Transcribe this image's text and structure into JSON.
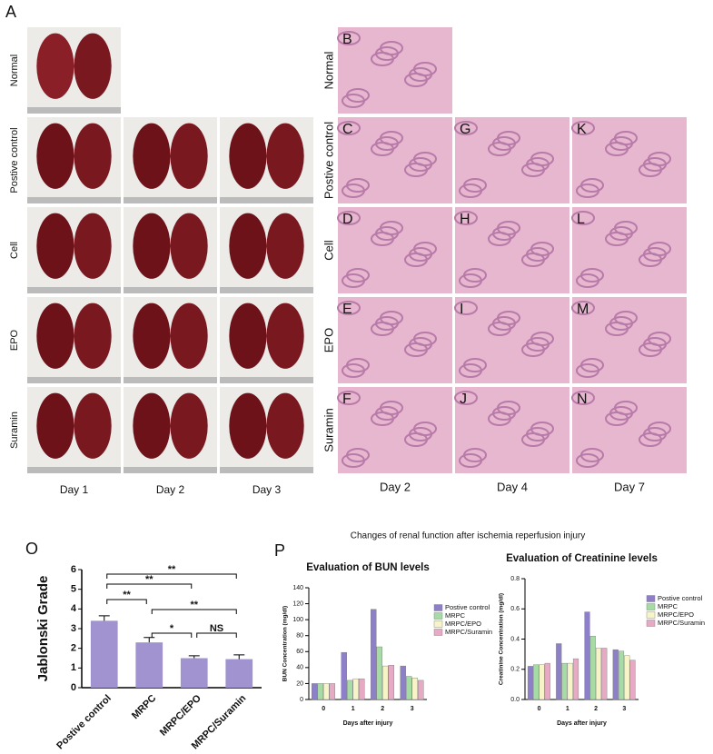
{
  "panel_a": {
    "label": "A",
    "rows": [
      "Normal",
      "Postive control",
      "Cell",
      "EPO",
      "Suramin"
    ],
    "columns": [
      "Day 1",
      "Day 2",
      "Day 3"
    ]
  },
  "panel_histology": {
    "panel_labels": [
      [
        "B"
      ],
      [
        "C",
        "G",
        "K"
      ],
      [
        "D",
        "H",
        "L"
      ],
      [
        "E",
        "I",
        "M"
      ],
      [
        "F",
        "J",
        "N"
      ]
    ],
    "rows": [
      "Normal",
      "Postive control",
      "Cell",
      "EPO",
      "Suramin"
    ],
    "columns": [
      "Day 2",
      "Day 4",
      "Day 7"
    ]
  },
  "panel_o": {
    "label": "O"
  },
  "panel_p": {
    "label": "P",
    "title": "Changes of renal function after ischemia reperfusion injury"
  },
  "chart_data": [
    {
      "type": "bar",
      "y_label": "Jablonski Grade",
      "categories": [
        "Postive control",
        "MRPC",
        "MRPC/EPO",
        "MRPC/Suramin"
      ],
      "values": [
        3.4,
        2.3,
        1.5,
        1.45
      ],
      "errors": [
        0.25,
        0.25,
        0.12,
        0.22
      ],
      "color": "#a093cf",
      "ylim": [
        0,
        6
      ],
      "yticks": [
        0,
        1,
        2,
        3,
        4,
        5,
        6
      ],
      "annotations": [
        {
          "text": "**",
          "between": [
            0,
            3
          ]
        },
        {
          "text": "**",
          "between": [
            0,
            2
          ]
        },
        {
          "text": "**",
          "between": [
            0,
            1
          ]
        },
        {
          "text": "**",
          "between": [
            1,
            3
          ]
        },
        {
          "text": "*",
          "between": [
            1,
            2
          ]
        },
        {
          "text": "NS",
          "between": [
            2,
            3
          ]
        }
      ]
    },
    {
      "type": "grouped_bar",
      "title": "Evaluation of BUN levels",
      "x_label": "Days after injury",
      "y_label": "BUN Concentration (mg/dl)",
      "categories": [
        "0",
        "1",
        "2",
        "3"
      ],
      "series": [
        {
          "name": "Postive control",
          "color": "#8e80c8",
          "values": [
            20,
            59,
            113,
            42
          ]
        },
        {
          "name": "MRPC",
          "color": "#a6dba6",
          "values": [
            20,
            24,
            66,
            29
          ]
        },
        {
          "name": "MRPC/EPO",
          "color": "#f7f5c8",
          "values": [
            20,
            26,
            42,
            27
          ]
        },
        {
          "name": "MRPC/Suramin",
          "color": "#e7aac4",
          "values": [
            20,
            26,
            43,
            24
          ]
        }
      ],
      "ylim": [
        0,
        140
      ],
      "yticks": [
        0,
        20,
        40,
        60,
        80,
        100,
        120,
        140
      ]
    },
    {
      "type": "grouped_bar",
      "title": "Evaluation of Creatinine levels",
      "x_label": "Days after injury",
      "y_label": "Creatinine Concentration (mg/dl)",
      "categories": [
        "0",
        "1",
        "2",
        "3"
      ],
      "series": [
        {
          "name": "Postive control",
          "color": "#8e80c8",
          "values": [
            0.22,
            0.37,
            0.58,
            0.33
          ]
        },
        {
          "name": "MRPC",
          "color": "#a6dba6",
          "values": [
            0.23,
            0.24,
            0.42,
            0.32
          ]
        },
        {
          "name": "MRPC/EPO",
          "color": "#f7f5c8",
          "values": [
            0.23,
            0.24,
            0.34,
            0.29
          ]
        },
        {
          "name": "MRPC/Suramin",
          "color": "#e7aac4",
          "values": [
            0.24,
            0.27,
            0.34,
            0.26
          ]
        }
      ],
      "ylim": [
        0,
        0.8
      ],
      "yticks": [
        {
          "value": 0,
          "label": "0.0"
        },
        0.2,
        0.4,
        0.6,
        0.8
      ]
    }
  ]
}
